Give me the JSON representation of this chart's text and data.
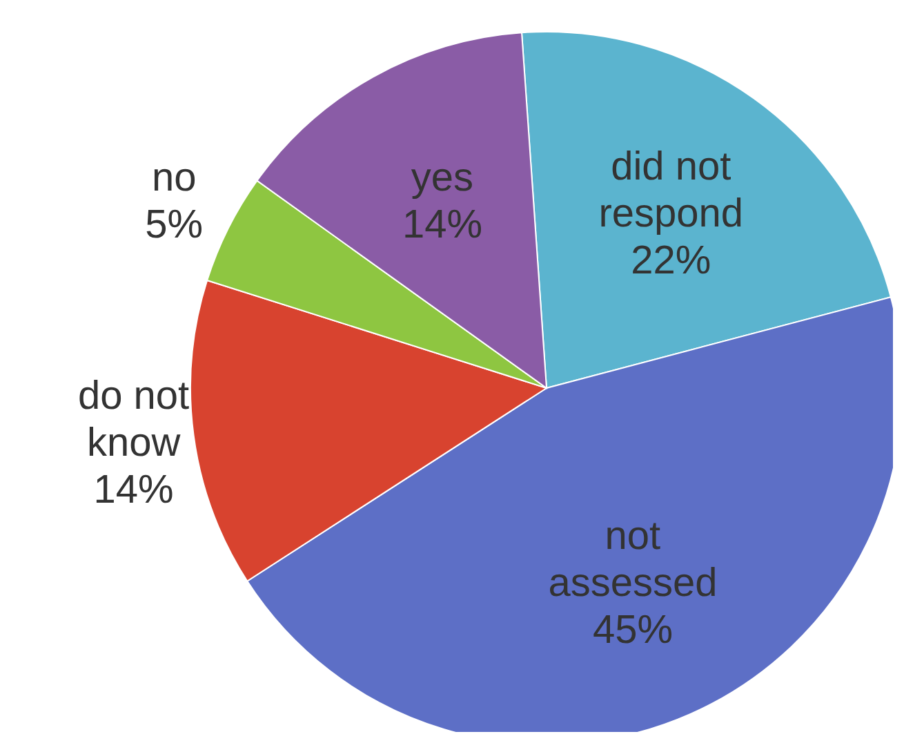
{
  "chart_data": {
    "type": "pie",
    "categories": [
      "did not respond",
      "not assessed",
      "do not know",
      "no",
      "yes"
    ],
    "values": [
      22,
      45,
      14,
      5,
      14
    ],
    "value_labels": [
      "22%",
      "45%",
      "14%",
      "5%",
      "14%"
    ],
    "colors": [
      "#5bb4cf",
      "#5d6fc6",
      "#d8432f",
      "#8ec641",
      "#8a5ca6"
    ],
    "legend": false
  }
}
